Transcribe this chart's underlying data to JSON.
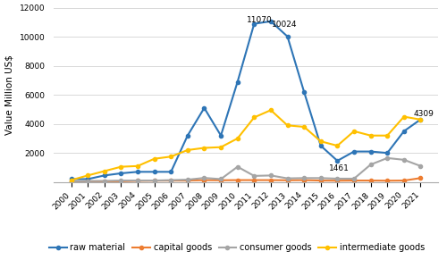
{
  "years": [
    2000,
    2001,
    2002,
    2003,
    2004,
    2005,
    2006,
    2007,
    2008,
    2009,
    2010,
    2011,
    2012,
    2013,
    2014,
    2015,
    2016,
    2017,
    2018,
    2019,
    2020,
    2021
  ],
  "raw_material": [
    200,
    200,
    450,
    600,
    700,
    700,
    700,
    3200,
    5100,
    3200,
    6900,
    10900,
    11070,
    10024,
    6200,
    2500,
    1461,
    2100,
    2100,
    2000,
    3500,
    4309
  ],
  "capital_goods": [
    30,
    50,
    50,
    50,
    80,
    90,
    100,
    100,
    130,
    120,
    130,
    130,
    130,
    120,
    130,
    100,
    90,
    100,
    100,
    90,
    100,
    270
  ],
  "consumer_goods": [
    50,
    60,
    70,
    100,
    100,
    100,
    130,
    160,
    280,
    200,
    1050,
    420,
    450,
    250,
    270,
    270,
    230,
    230,
    1200,
    1650,
    1530,
    1100
  ],
  "intermediate_goods": [
    130,
    450,
    750,
    1050,
    1100,
    1600,
    1750,
    2200,
    2350,
    2400,
    3000,
    4450,
    4950,
    3900,
    3800,
    2800,
    2500,
    3500,
    3200,
    3200,
    4500,
    4300
  ],
  "raw_material_color": "#2E75B6",
  "capital_goods_color": "#ED7D31",
  "consumer_goods_color": "#A5A5A5",
  "intermediate_goods_color": "#FFC000",
  "ylabel": "Value Million US$",
  "ylim": [
    0,
    12000
  ],
  "yticks": [
    0,
    2000,
    4000,
    6000,
    8000,
    10000,
    12000
  ],
  "legend_labels": [
    "raw material",
    "capital goods",
    "consumer goods",
    "intermediate goods"
  ],
  "marker": "o",
  "markersize": 3,
  "linewidth": 1.5,
  "grid_color": "#D9D9D9",
  "bg_color": "#FFFFFF",
  "tick_fontsize": 6.5,
  "label_fontsize": 7.5,
  "legend_fontsize": 7,
  "annot_fontsize": 6.5
}
